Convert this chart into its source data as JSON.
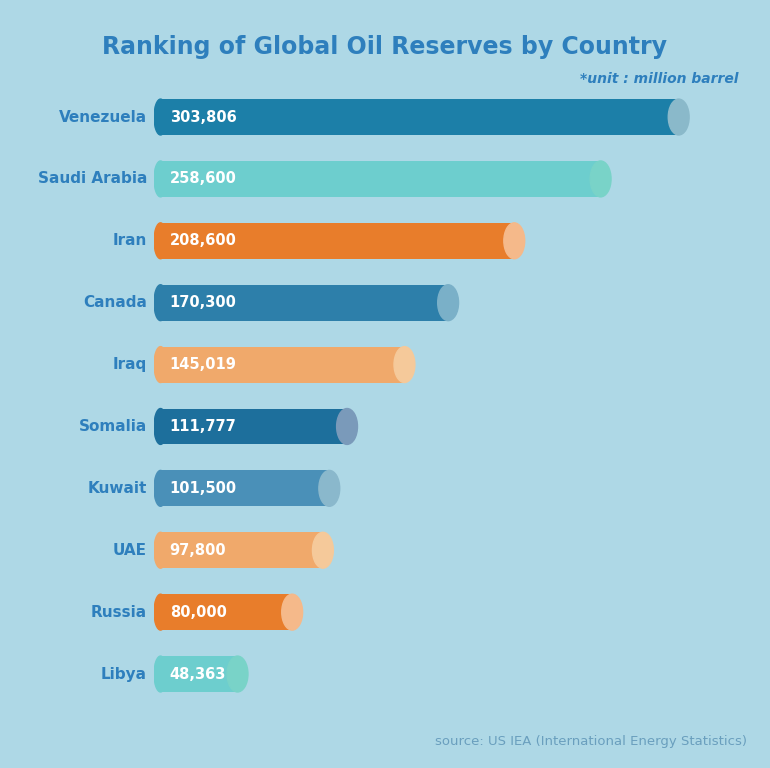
{
  "title": "Ranking of Global Oil Reserves by Country",
  "unit_label": "*unit : million barrel",
  "source_label": "source: US IEA (International Energy Statistics)",
  "background_color": "#aed8e6",
  "title_color": "#2e7fbd",
  "label_color": "#2e7fbd",
  "unit_color": "#2e7fbd",
  "source_color": "#6a9fbe",
  "countries": [
    "Venezuela",
    "Saudi Arabia",
    "Iran",
    "Canada",
    "Iraq",
    "Somalia",
    "Kuwait",
    "UAE",
    "Russia",
    "Libya"
  ],
  "values": [
    303806,
    258600,
    208600,
    170300,
    145019,
    111777,
    101500,
    97800,
    80000,
    48363
  ],
  "labels": [
    "303,806",
    "258,600",
    "208,600",
    "170,300",
    "145,019",
    "111,777",
    "101,500",
    "97,800",
    "80,000",
    "48,363"
  ],
  "bar_colors": [
    "#1c7fa8",
    "#6dcece",
    "#e87d2b",
    "#2d7faa",
    "#f0a96b",
    "#1d6f9c",
    "#4a90b8",
    "#f0a96b",
    "#e87d2b",
    "#6dcece"
  ],
  "cap_colors": [
    "#8ab9ca",
    "#79d3c8",
    "#f5b98a",
    "#7ab0c8",
    "#f5c99a",
    "#7a9aba",
    "#8ab8cc",
    "#f5c99a",
    "#f5b98a",
    "#79d3c8"
  ]
}
